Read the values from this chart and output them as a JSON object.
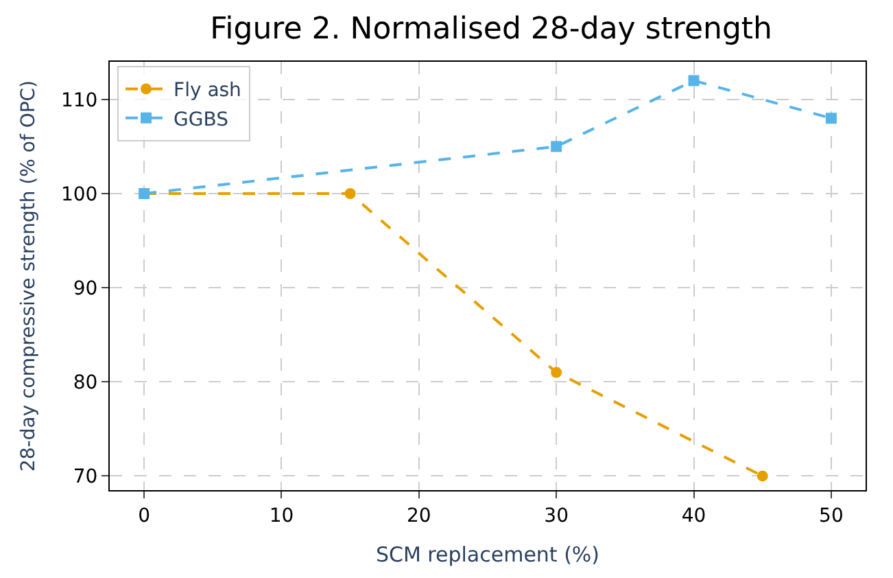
{
  "chart_data": {
    "type": "line",
    "title": "Figure 2. Normalised 28-day strength",
    "xlabel": "SCM replacement (%)",
    "ylabel": "28-day compressive strength (% of OPC)",
    "series": [
      {
        "name": "Fly ash",
        "color": "#e69f00",
        "marker": "circle",
        "x": [
          0,
          15,
          30,
          45
        ],
        "values": [
          100,
          100,
          81,
          70
        ]
      },
      {
        "name": "GGBS",
        "color": "#56b4e9",
        "marker": "square",
        "x": [
          0,
          30,
          40,
          50
        ],
        "values": [
          100,
          105,
          112,
          108
        ]
      }
    ],
    "line_style": "dashed",
    "xlim": [
      -2.5,
      52.5
    ],
    "xticks": [
      0,
      10,
      20,
      30,
      40,
      50
    ],
    "ylim": [
      68.5,
      114
    ],
    "yticks": [
      70,
      80,
      90,
      100,
      110
    ],
    "grid": true,
    "legend": "top left"
  }
}
